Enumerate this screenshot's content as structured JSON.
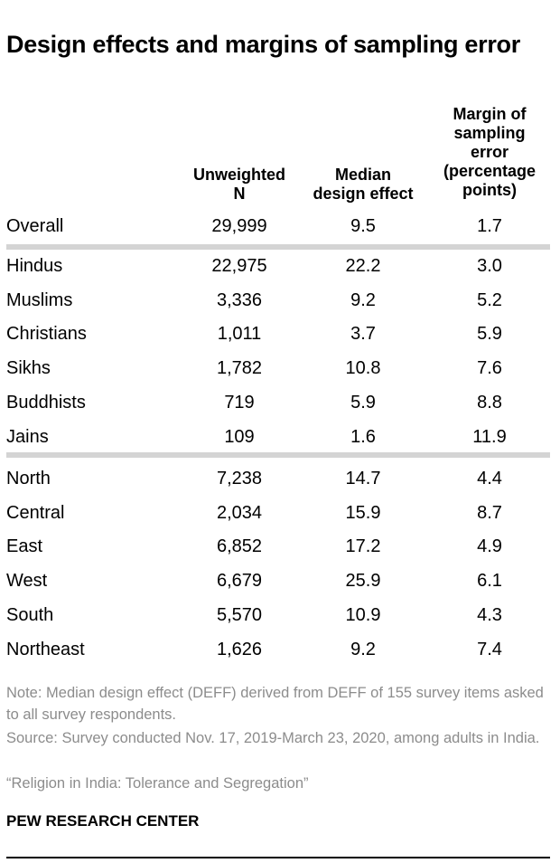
{
  "title": "Design effects and margins of sampling error",
  "chart_data": {
    "type": "table",
    "columns": [
      "",
      "Unweighted N",
      "Median design effect",
      "Margin of sampling error (percentage points)"
    ],
    "groups": [
      [
        {
          "label": "Overall",
          "n": "29,999",
          "deff": "9.5",
          "moe": "1.7"
        }
      ],
      [
        {
          "label": "Hindus",
          "n": "22,975",
          "deff": "22.2",
          "moe": "3.0"
        },
        {
          "label": "Muslims",
          "n": "3,336",
          "deff": "9.2",
          "moe": "5.2"
        },
        {
          "label": "Christians",
          "n": "1,011",
          "deff": "3.7",
          "moe": "5.9"
        },
        {
          "label": "Sikhs",
          "n": "1,782",
          "deff": "10.8",
          "moe": "7.6"
        },
        {
          "label": "Buddhists",
          "n": "719",
          "deff": "5.9",
          "moe": "8.8"
        },
        {
          "label": "Jains",
          "n": "109",
          "deff": "1.6",
          "moe": "11.9"
        }
      ],
      [
        {
          "label": "North",
          "n": "7,238",
          "deff": "14.7",
          "moe": "4.4"
        },
        {
          "label": "Central",
          "n": "2,034",
          "deff": "15.9",
          "moe": "8.7"
        },
        {
          "label": "East",
          "n": "6,852",
          "deff": "17.2",
          "moe": "4.9"
        },
        {
          "label": "West",
          "n": "6,679",
          "deff": "25.9",
          "moe": "6.1"
        },
        {
          "label": "South",
          "n": "5,570",
          "deff": "10.9",
          "moe": "4.3"
        },
        {
          "label": "Northeast",
          "n": "1,626",
          "deff": "9.2",
          "moe": "7.4"
        }
      ]
    ]
  },
  "headers": {
    "col1": [
      "Unweighted",
      "N"
    ],
    "col2": [
      "Median",
      "design effect"
    ],
    "col3": [
      "Margin of",
      "sampling",
      "error",
      "(percentage",
      "points)"
    ]
  },
  "notes": {
    "note": "Note: Median design effect (DEFF) derived from DEFF of 155 survey items asked to all survey respondents.",
    "source": "Source: Survey conducted Nov. 17, 2019-March 23, 2020, among adults in India.",
    "report": "“Religion in India: Tolerance and Segregation”"
  },
  "brand": "PEW RESEARCH CENTER"
}
